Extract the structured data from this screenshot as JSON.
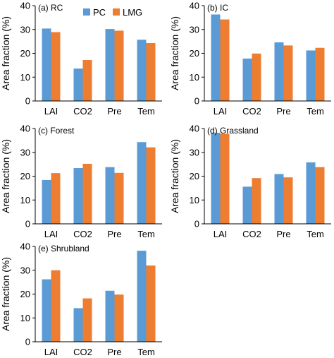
{
  "chart_data": [
    {
      "type": "bar",
      "panel_label": "(a) RC",
      "categories": [
        "LAI",
        "CO2",
        "Pre",
        "Tem"
      ],
      "series": [
        {
          "name": "PC",
          "values": [
            30.4,
            13.6,
            30.2,
            25.7
          ]
        },
        {
          "name": "LMG",
          "values": [
            28.9,
            17.2,
            29.5,
            24.3
          ]
        }
      ],
      "ylabel": "Area fraction (%)",
      "ylim": [
        0,
        40
      ],
      "yticks": [
        0,
        10,
        20,
        30,
        40
      ]
    },
    {
      "type": "bar",
      "panel_label": "(b) IC",
      "categories": [
        "LAI",
        "CO2",
        "Pre",
        "Tem"
      ],
      "series": [
        {
          "name": "PC",
          "values": [
            36.3,
            17.8,
            24.6,
            21.2
          ]
        },
        {
          "name": "LMG",
          "values": [
            34.2,
            19.9,
            23.3,
            22.3
          ]
        }
      ],
      "ylabel": "Area fraction (%)",
      "ylim": [
        0,
        40
      ],
      "yticks": [
        0,
        10,
        20,
        30,
        40
      ]
    },
    {
      "type": "bar",
      "panel_label": "(c) Forest",
      "categories": [
        "LAI",
        "CO2",
        "Pre",
        "Tem"
      ],
      "series": [
        {
          "name": "PC",
          "values": [
            18.4,
            23.4,
            23.8,
            34.3
          ]
        },
        {
          "name": "LMG",
          "values": [
            21.3,
            25.2,
            21.4,
            32.1
          ]
        }
      ],
      "ylabel": "Area fraction (%)",
      "ylim": [
        0,
        40
      ],
      "yticks": [
        0,
        10,
        20,
        30,
        40
      ]
    },
    {
      "type": "bar",
      "panel_label": "(d) Grassland",
      "categories": [
        "LAI",
        "CO2",
        "Pre",
        "Tem"
      ],
      "series": [
        {
          "name": "PC",
          "values": [
            38.2,
            15.6,
            20.9,
            25.8
          ]
        },
        {
          "name": "LMG",
          "values": [
            37.8,
            19.2,
            19.5,
            23.8
          ]
        }
      ],
      "ylabel": "Area fraction (%)",
      "ylim": [
        0,
        40
      ],
      "yticks": [
        0,
        10,
        20,
        30,
        40
      ]
    },
    {
      "type": "bar",
      "panel_label": "(e) Shrubland",
      "categories": [
        "LAI",
        "CO2",
        "Pre",
        "Tem"
      ],
      "series": [
        {
          "name": "PC",
          "values": [
            26.2,
            14.1,
            21.4,
            38.2
          ]
        },
        {
          "name": "LMG",
          "values": [
            30.0,
            18.2,
            19.8,
            32.0
          ]
        }
      ],
      "ylabel": "Area fraction (%)",
      "ylim": [
        0,
        40
      ],
      "yticks": [
        0,
        10,
        20,
        30,
        40
      ]
    }
  ],
  "legend": {
    "position": "top, panel (a)",
    "items": [
      {
        "label": "PC",
        "color": "#5B9BD5"
      },
      {
        "label": "LMG",
        "color": "#ED7D31"
      }
    ]
  },
  "colors": {
    "PC": "#5B9BD5",
    "LMG": "#ED7D31",
    "axis": "#000000"
  }
}
